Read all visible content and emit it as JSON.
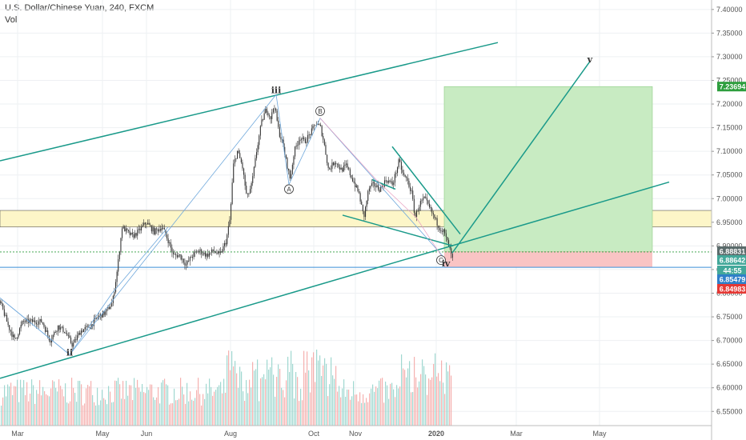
{
  "header": {
    "title": "U.S. Dollar/Chinese Yuan, 240, FXCM",
    "volume_label": "Vol"
  },
  "colors": {
    "candle_up": "#26a69a",
    "candle_down": "#ef5350",
    "trendline": "#1a9a8a",
    "wave_path": "#6fa8dc",
    "profit_zone": "#c8ebc2",
    "loss_zone": "#f9c4c4",
    "supply_zone": "#fdf6c8",
    "tag_green": "#2e9e3e",
    "tag_red": "#e53935",
    "tag_grey": "#5a6b6b",
    "tag_teal": "#43a89a",
    "tag_blue": "#2f7fc8"
  },
  "chart_data": {
    "type": "line",
    "symbol": "USDCNH",
    "x_ticks": [
      "Mar",
      "May",
      "Jun",
      "Aug",
      "Oct",
      "Nov",
      "2020",
      "Mar",
      "May"
    ],
    "y_ticks": [
      "7.40000",
      "7.35000",
      "7.30000",
      "7.25000",
      "7.20000",
      "7.15000",
      "7.10000",
      "7.05000",
      "7.00000",
      "6.95000",
      "6.90000",
      "6.85000",
      "6.80000",
      "6.75000",
      "6.70000",
      "6.65000",
      "6.60000",
      "6.55000"
    ],
    "ylim": [
      6.52,
      7.42
    ],
    "grid": true,
    "price_labels": [
      {
        "text": "7.23694",
        "value": 7.23694,
        "color": "green"
      },
      {
        "text": "6.88831",
        "value": 6.88831,
        "color": "grey"
      },
      {
        "text": "6.88642",
        "value": 6.88642,
        "color": "teal"
      },
      {
        "text": "44:55",
        "value": 6.8735,
        "color": "teal"
      },
      {
        "text": "6.85479",
        "value": 6.85479,
        "color": "blue"
      },
      {
        "text": "6.84983",
        "value": 6.84983,
        "color": "red"
      }
    ],
    "wave_labels": [
      {
        "text": "ii",
        "x": 87,
        "y": 6.675,
        "style": "roman"
      },
      {
        "text": "iii",
        "x": 345,
        "y": 7.23,
        "style": "roman"
      },
      {
        "text": "A",
        "x": 361,
        "y": 7.02,
        "style": "circle"
      },
      {
        "text": "B",
        "x": 400,
        "y": 7.185,
        "style": "circle"
      },
      {
        "text": "C",
        "x": 551,
        "y": 6.87,
        "style": "circle"
      },
      {
        "text": "iv",
        "x": 557,
        "y": 6.863,
        "style": "roman"
      },
      {
        "text": "v",
        "x": 737,
        "y": 7.295,
        "style": "roman"
      }
    ],
    "price_path": [
      [
        0,
        6.78
      ],
      [
        10,
        6.73
      ],
      [
        18,
        6.7
      ],
      [
        28,
        6.74
      ],
      [
        40,
        6.74
      ],
      [
        52,
        6.74
      ],
      [
        62,
        6.7
      ],
      [
        72,
        6.73
      ],
      [
        80,
        6.72
      ],
      [
        90,
        6.69
      ],
      [
        100,
        6.72
      ],
      [
        112,
        6.73
      ],
      [
        122,
        6.75
      ],
      [
        132,
        6.76
      ],
      [
        140,
        6.78
      ],
      [
        146,
        6.85
      ],
      [
        152,
        6.94
      ],
      [
        158,
        6.93
      ],
      [
        165,
        6.92
      ],
      [
        172,
        6.93
      ],
      [
        182,
        6.95
      ],
      [
        192,
        6.93
      ],
      [
        202,
        6.94
      ],
      [
        210,
        6.91
      ],
      [
        216,
        6.88
      ],
      [
        224,
        6.88
      ],
      [
        232,
        6.86
      ],
      [
        240,
        6.88
      ],
      [
        248,
        6.89
      ],
      [
        258,
        6.88
      ],
      [
        266,
        6.89
      ],
      [
        274,
        6.88
      ],
      [
        282,
        6.91
      ],
      [
        287,
        6.96
      ],
      [
        291,
        7.07
      ],
      [
        296,
        7.1
      ],
      [
        302,
        7.07
      ],
      [
        308,
        7.0
      ],
      [
        314,
        7.03
      ],
      [
        320,
        7.1
      ],
      [
        326,
        7.16
      ],
      [
        332,
        7.19
      ],
      [
        338,
        7.17
      ],
      [
        342,
        7.2
      ],
      [
        348,
        7.14
      ],
      [
        352,
        7.12
      ],
      [
        357,
        7.08
      ],
      [
        362,
        7.04
      ],
      [
        367,
        7.1
      ],
      [
        374,
        7.13
      ],
      [
        380,
        7.12
      ],
      [
        388,
        7.14
      ],
      [
        394,
        7.16
      ],
      [
        400,
        7.15
      ],
      [
        404,
        7.12
      ],
      [
        410,
        7.06
      ],
      [
        418,
        7.08
      ],
      [
        426,
        7.06
      ],
      [
        432,
        7.07
      ],
      [
        440,
        7.04
      ],
      [
        448,
        7.01
      ],
      [
        454,
        6.96
      ],
      [
        460,
        7.02
      ],
      [
        466,
        7.03
      ],
      [
        474,
        7.02
      ],
      [
        482,
        7.04
      ],
      [
        490,
        7.03
      ],
      [
        498,
        7.08
      ],
      [
        503,
        7.05
      ],
      [
        508,
        7.04
      ],
      [
        514,
        7.01
      ],
      [
        518,
        6.96
      ],
      [
        524,
        6.99
      ],
      [
        530,
        7.0
      ],
      [
        536,
        6.98
      ],
      [
        542,
        6.96
      ],
      [
        548,
        6.94
      ],
      [
        554,
        6.93
      ],
      [
        560,
        6.9
      ],
      [
        565,
        6.87
      ]
    ]
  }
}
